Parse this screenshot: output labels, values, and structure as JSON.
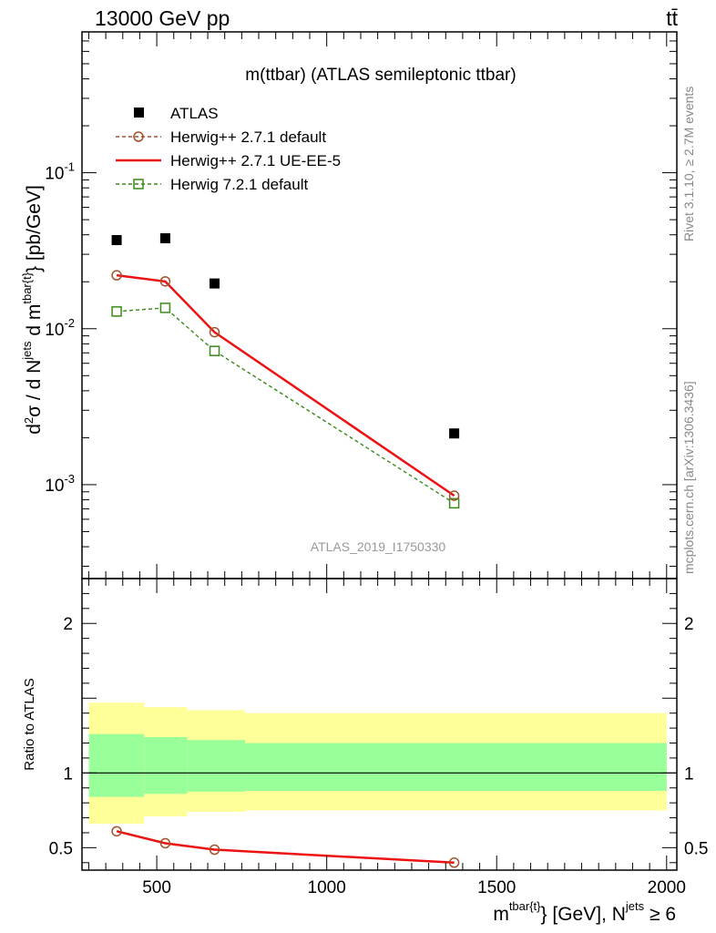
{
  "header": {
    "left": "13000 GeV pp",
    "right": "tt̄"
  },
  "main_panel": {
    "title": "m(ttbar) (ATLAS semileptonic ttbar)",
    "ylabel": "d²σ / d N^{jets} d m^{tbar{t}} [pb/GeV]",
    "watermark": "ATLAS_2019_I1750330",
    "side_top": "Rivet 3.1.10, ≥ 2.7M events",
    "side_bottom": "mcplots.cern.ch [arXiv:1306.3436]"
  },
  "ratio_panel": {
    "ylabel": "Ratio to ATLAS"
  },
  "xlabel": "m^{tbar{t}} [GeV], N^{jets} ≥ 6",
  "colors": {
    "atlas": "#000000",
    "herwigpp_default": "#a0522d",
    "herwigpp_ueee5": "#ee1111",
    "herwig7": "#3a8a1a",
    "band_inner": "#99ff99",
    "band_outer": "#ffff99"
  },
  "chart_data": [
    {
      "type": "scatter",
      "title": "m(ttbar) (ATLAS semileptonic ttbar)",
      "ylabel": "d²σ / d N^{jets} d m^{tbar{t}} [pb/GeV]",
      "yscale": "log",
      "xlim": [
        280,
        2030
      ],
      "ylim": [
        0.00025,
        0.8
      ],
      "x_ticks": [
        500,
        1000,
        1500,
        2000
      ],
      "y_tick_labels": [
        "10^-3",
        "10^-2",
        "10^-1"
      ],
      "legend_position": "top-left",
      "series": [
        {
          "name": "ATLAS",
          "style": "marker",
          "x": [
            382,
            525,
            670,
            1375
          ],
          "y": [
            0.037,
            0.038,
            0.0195,
            0.00213
          ]
        },
        {
          "name": "Herwig++ 2.7.1 default",
          "style": "dashed-circle",
          "x": [
            382,
            525,
            670,
            1375
          ],
          "y": [
            0.022,
            0.0201,
            0.0095,
            0.00085
          ]
        },
        {
          "name": "Herwig++ 2.7.1 UE-EE-5",
          "style": "solid",
          "x": [
            382,
            525,
            670,
            1375
          ],
          "y": [
            0.022,
            0.0201,
            0.0095,
            0.00085
          ]
        },
        {
          "name": "Herwig 7.2.1 default",
          "style": "dashed-square",
          "x": [
            382,
            525,
            670,
            1375
          ],
          "y": [
            0.0129,
            0.0136,
            0.0072,
            0.00076
          ]
        }
      ]
    },
    {
      "type": "line",
      "ylabel": "Ratio to ATLAS",
      "xlabel": "m^{tbar{t}} [GeV], N^{jets} ≥ 6",
      "xlim": [
        280,
        2030
      ],
      "ylim": [
        0.35,
        2.3
      ],
      "x_ticks": [
        500,
        1000,
        1500,
        2000
      ],
      "y_ticks": [
        0.5,
        1,
        2
      ],
      "bands": {
        "edges": [
          300,
          463,
          590,
          760,
          2000
        ],
        "outer_lo": [
          0.66,
          0.71,
          0.74,
          0.75
        ],
        "outer_hi": [
          1.47,
          1.44,
          1.42,
          1.4
        ],
        "inner_lo": [
          0.84,
          0.86,
          0.875,
          0.88
        ],
        "inner_hi": [
          1.26,
          1.24,
          1.22,
          1.2
        ]
      },
      "series": [
        {
          "name": "Herwig++ 2.7.1 default",
          "style": "dashed-circle",
          "x": [
            382,
            525,
            670,
            1375
          ],
          "y": [
            0.61,
            0.53,
            0.487,
            0.4
          ]
        },
        {
          "name": "Herwig++ 2.7.1 UE-EE-5",
          "style": "solid",
          "x": [
            382,
            525,
            670,
            1375
          ],
          "y": [
            0.61,
            0.53,
            0.487,
            0.4
          ]
        }
      ]
    }
  ]
}
